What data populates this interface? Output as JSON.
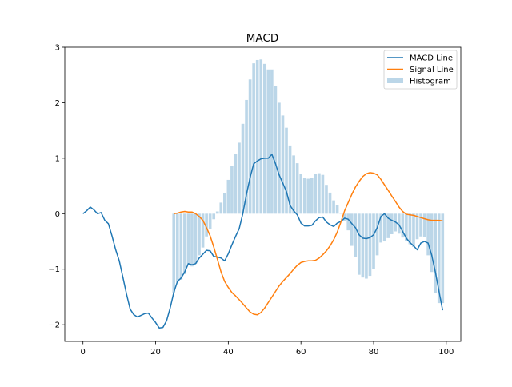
{
  "chart_data": {
    "type": "line",
    "title": "MACD",
    "xlabel": "",
    "ylabel": "",
    "xlim": [
      -5,
      104
    ],
    "ylim": [
      -2.3,
      3.0
    ],
    "xticks": [
      0,
      20,
      40,
      60,
      80,
      100
    ],
    "yticks": [
      -2,
      -1,
      0,
      1,
      2,
      3
    ],
    "grid": false,
    "legend_placement": "top-right",
    "series": [
      {
        "name": "MACD Line",
        "kind": "line",
        "color": "#1f77b4",
        "x_start": 0,
        "values": [
          0.0,
          0.05,
          0.12,
          0.07,
          0.0,
          0.02,
          -0.12,
          -0.18,
          -0.4,
          -0.65,
          -0.85,
          -1.15,
          -1.45,
          -1.72,
          -1.82,
          -1.86,
          -1.83,
          -1.8,
          -1.79,
          -1.88,
          -1.96,
          -2.06,
          -2.05,
          -1.93,
          -1.7,
          -1.42,
          -1.22,
          -1.16,
          -1.05,
          -0.9,
          -0.92,
          -0.9,
          -0.8,
          -0.73,
          -0.66,
          -0.67,
          -0.77,
          -0.78,
          -0.8,
          -0.85,
          -0.72,
          -0.56,
          -0.41,
          -0.27,
          0.0,
          0.35,
          0.65,
          0.9,
          0.95,
          0.99,
          1.0,
          1.0,
          1.07,
          0.9,
          0.7,
          0.55,
          0.4,
          0.15,
          0.05,
          -0.02,
          -0.17,
          -0.22,
          -0.22,
          -0.21,
          -0.13,
          -0.07,
          -0.06,
          -0.15,
          -0.2,
          -0.23,
          -0.17,
          -0.14,
          -0.08,
          -0.1,
          -0.18,
          -0.25,
          -0.38,
          -0.44,
          -0.45,
          -0.43,
          -0.38,
          -0.25,
          -0.05,
          0.0,
          -0.08,
          -0.12,
          -0.15,
          -0.2,
          -0.32,
          -0.44,
          -0.52,
          -0.58,
          -0.65,
          -0.53,
          -0.5,
          -0.53,
          -0.75,
          -1.05,
          -1.4,
          -1.74
        ]
      },
      {
        "name": "Signal Line",
        "kind": "line",
        "color": "#ff7f0e",
        "x_start": 25,
        "values": [
          0.0,
          0.01,
          0.03,
          0.04,
          0.03,
          0.03,
          0.0,
          -0.05,
          -0.12,
          -0.25,
          -0.4,
          -0.6,
          -0.82,
          -1.05,
          -1.22,
          -1.33,
          -1.42,
          -1.48,
          -1.55,
          -1.62,
          -1.7,
          -1.77,
          -1.81,
          -1.82,
          -1.78,
          -1.7,
          -1.6,
          -1.5,
          -1.4,
          -1.3,
          -1.22,
          -1.15,
          -1.08,
          -1.0,
          -0.93,
          -0.88,
          -0.86,
          -0.85,
          -0.85,
          -0.84,
          -0.8,
          -0.74,
          -0.67,
          -0.58,
          -0.47,
          -0.33,
          -0.15,
          0.05,
          0.2,
          0.35,
          0.48,
          0.58,
          0.67,
          0.72,
          0.74,
          0.73,
          0.7,
          0.62,
          0.52,
          0.42,
          0.32,
          0.22,
          0.12,
          0.04,
          -0.01,
          -0.02,
          -0.03,
          -0.05,
          -0.07,
          -0.09,
          -0.11,
          -0.12,
          -0.12,
          -0.12,
          -0.13
        ]
      },
      {
        "name": "Histogram",
        "kind": "bar",
        "color": "#1f77b4",
        "alpha": 0.3,
        "x_start": 25,
        "values": [
          -1.42,
          -1.23,
          -1.19,
          -1.09,
          -0.93,
          -0.95,
          -0.9,
          -0.75,
          -0.61,
          -0.41,
          -0.27,
          -0.1,
          0.04,
          0.2,
          0.37,
          0.61,
          0.86,
          1.07,
          1.28,
          1.62,
          2.05,
          2.42,
          2.71,
          2.77,
          2.78,
          2.7,
          2.6,
          2.6,
          2.3,
          2.0,
          1.77,
          1.55,
          1.23,
          1.05,
          0.91,
          0.71,
          0.64,
          0.63,
          0.64,
          0.71,
          0.73,
          0.7,
          0.52,
          0.38,
          0.24,
          0.16,
          0.01,
          -0.13,
          -0.3,
          -0.58,
          -0.78,
          -1.1,
          -1.15,
          -1.17,
          -1.12,
          -1.0,
          -0.75,
          -0.52,
          -0.5,
          -0.44,
          -0.37,
          -0.32,
          -0.36,
          -0.43,
          -0.5,
          -0.55,
          -0.6,
          -0.46,
          -0.41,
          -0.42,
          -0.75,
          -1.05,
          -1.43,
          -1.61,
          -1.61
        ]
      }
    ]
  }
}
